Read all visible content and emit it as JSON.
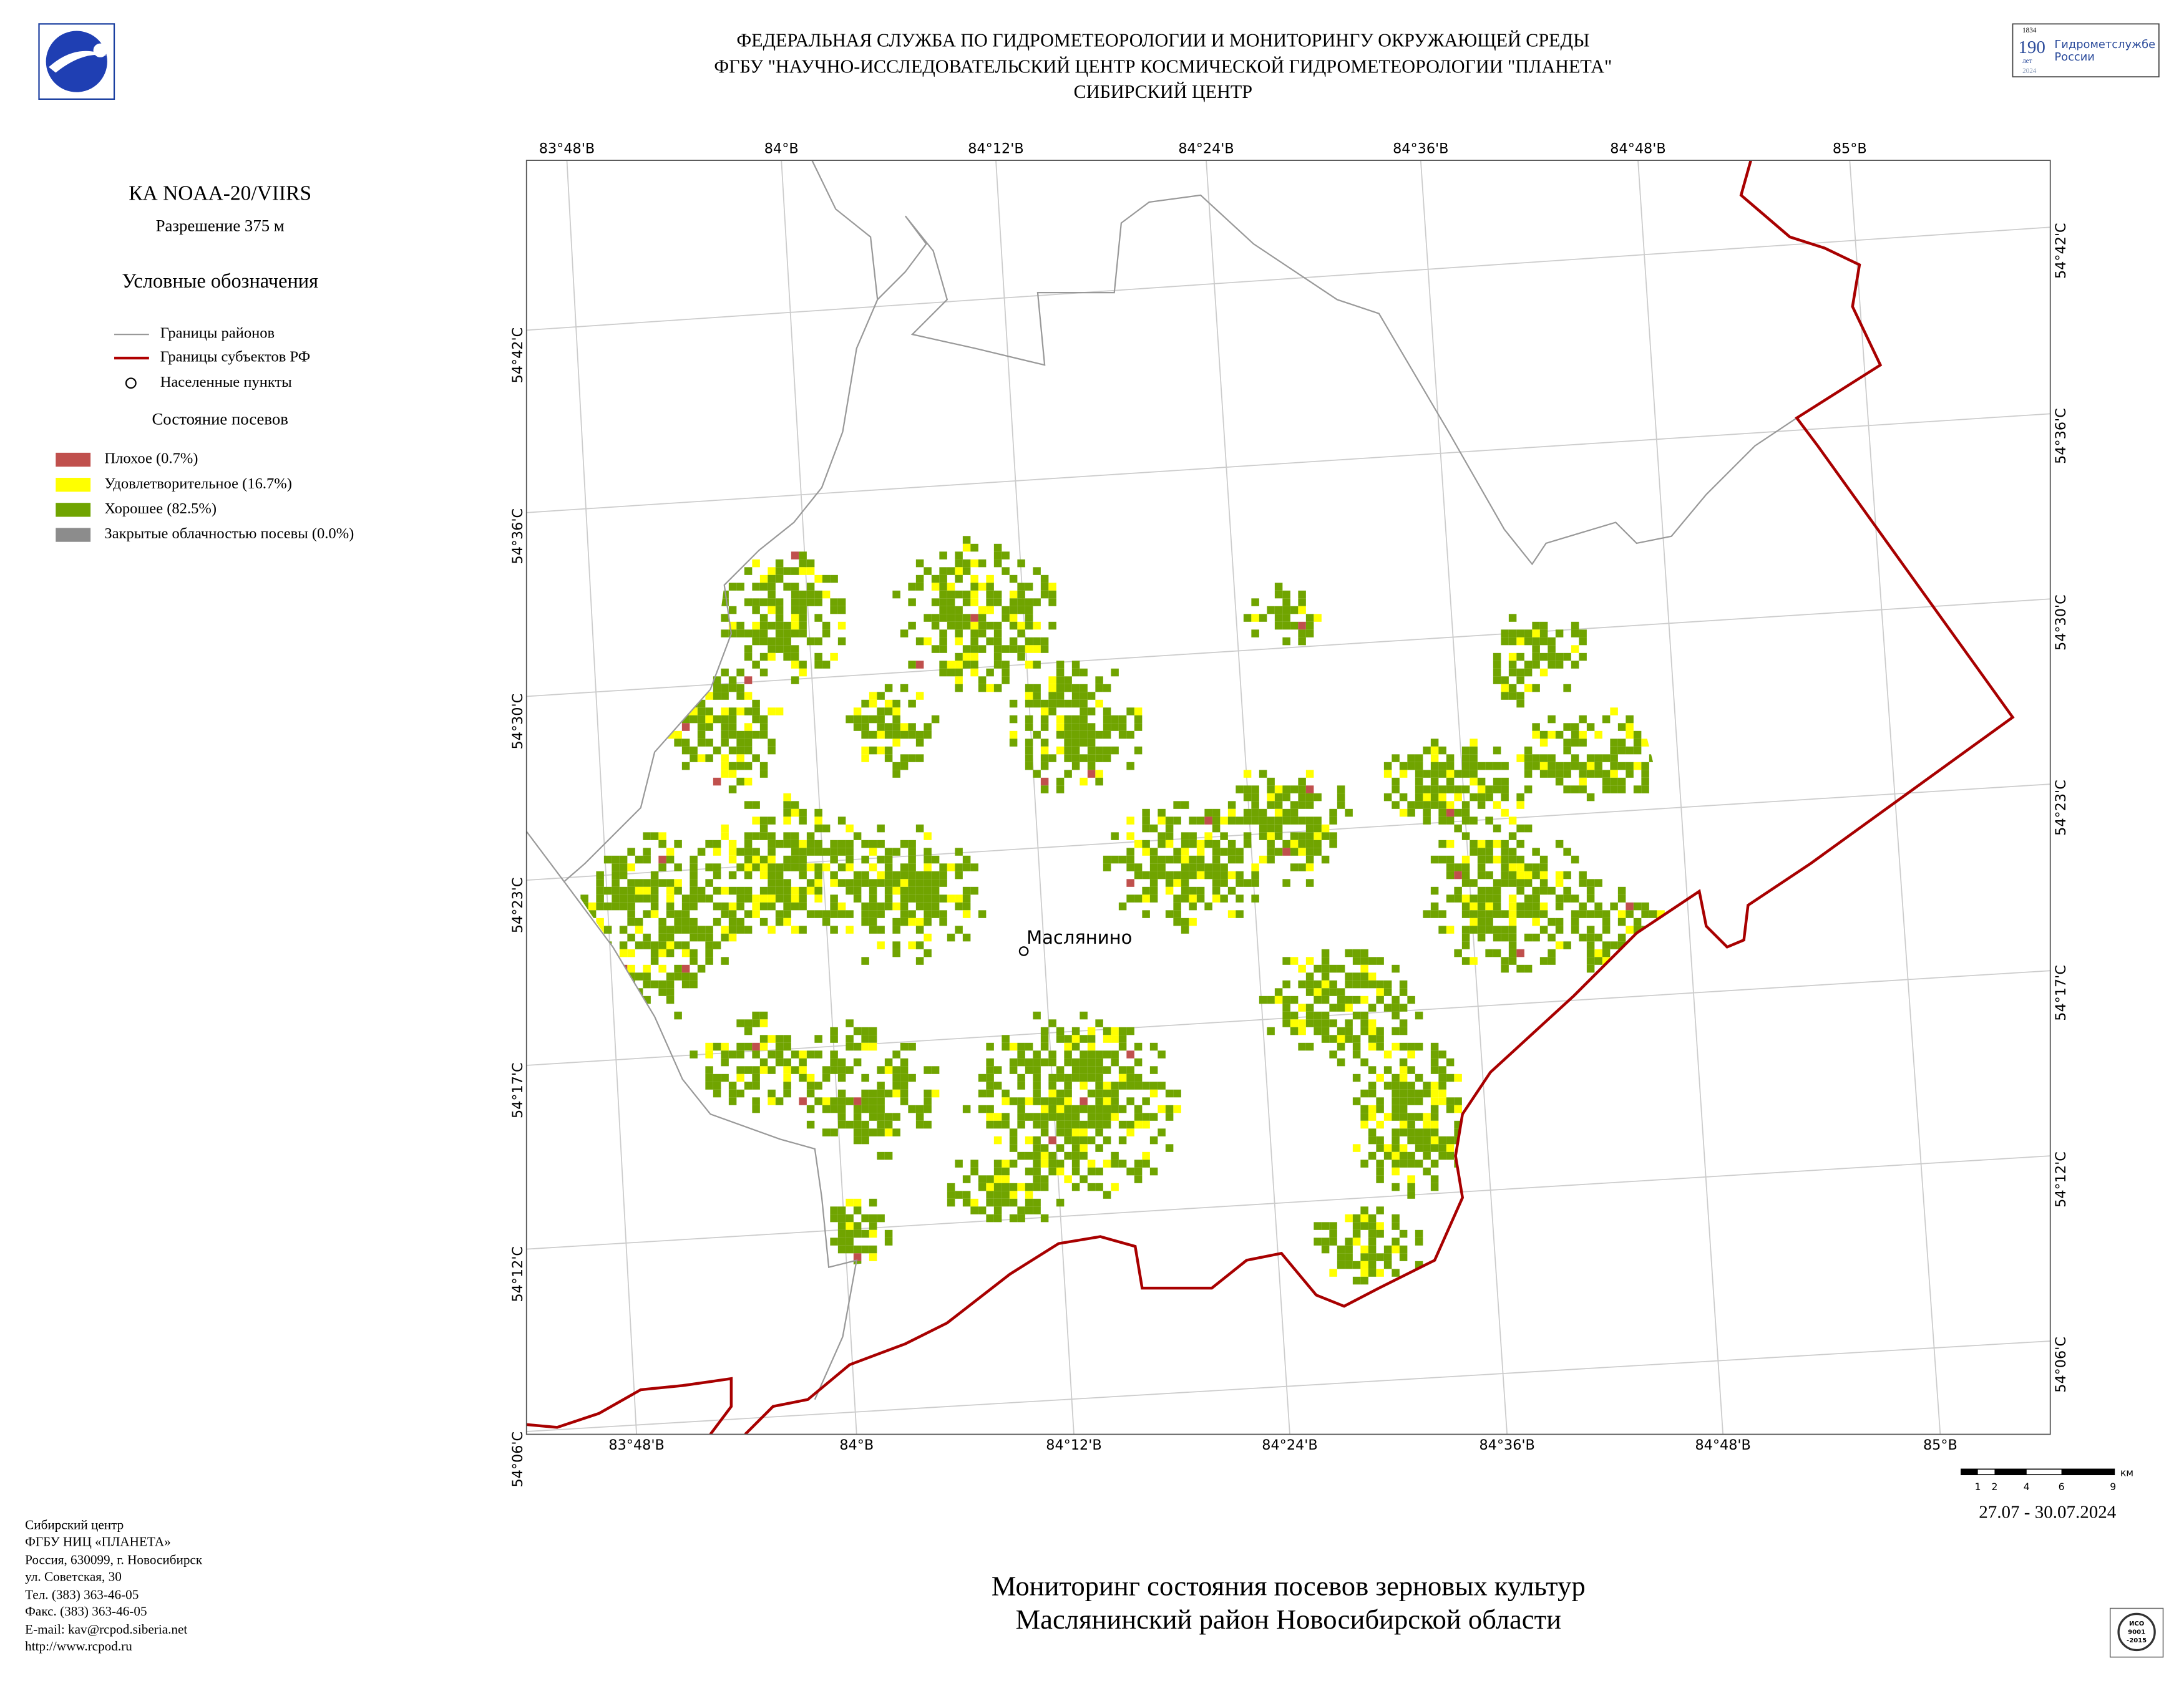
{
  "header": {
    "lines": [
      "ФЕДЕРАЛЬНАЯ СЛУЖБА ПО ГИДРОМЕТЕОРОЛОГИИ И МОНИТОРИНГУ ОКРУЖАЮЩЕЙ СРЕДЫ",
      "ФГБУ \"НАУЧНО-ИССЛЕДОВАТЕЛЬСКИЙ ЦЕНТР КОСМИЧЕСКОЙ ГИДРОМЕТЕОРОЛОГИИ \"ПЛАНЕТА\"",
      "СИБИРСКИЙ ЦЕНТР"
    ],
    "right_logo": {
      "years_top": "1834",
      "number": "190",
      "unit": "лет",
      "years_bottom": "2024",
      "name_1": "Гидрометслужбе",
      "name_2": "России"
    }
  },
  "legend": {
    "satellite": "КА NOAA-20/VIIRS",
    "resolution": "Разрешение 375 м",
    "title": "Условные обозначения",
    "boundaries": [
      "Границы районов",
      "Границы субъектов РФ",
      "Населенные пункты"
    ],
    "crops_title": "Состояние посевов",
    "crops": [
      "Плохое (0.7%)",
      "Удовлетворительное (16.7%)",
      "Хорошее (82.5%)",
      "Закрытые облачностью посевы (0.0%)"
    ]
  },
  "map": {
    "top_labels": [
      "83°48'В",
      "84°В",
      "84°12'В",
      "84°24'В",
      "84°36'В",
      "84°48'В",
      "85°В"
    ],
    "bottom_labels": [
      "83°48'В",
      "84°В",
      "84°12'В",
      "84°24'В",
      "84°36'В",
      "84°48'В",
      "85°В"
    ],
    "left_labels": [
      "54°42'С",
      "54°36'С",
      "54°30'С",
      "54°23'С",
      "54°17'С",
      "54°12'С",
      "54°06'С"
    ],
    "right_labels": [
      "54°42'С",
      "54°36'С",
      "54°30'С",
      "54°23'С",
      "54°17'С",
      "54°12'С",
      "54°06'С"
    ],
    "place": "Маслянино"
  },
  "scale_bar": {
    "labels": [
      "1",
      "2",
      "4",
      "6",
      "9"
    ],
    "unit": "км"
  },
  "date": "27.07 - 30.07.2024",
  "footer": {
    "lines": [
      "Сибирский центр",
      "ФГБУ НИЦ «ПЛАНЕТА»",
      "Россия, 630099, г. Новосибирск",
      "ул. Советская, 30",
      "Тел. (383) 363-46-05",
      "Факс. (383) 363-46-05",
      "E-mail: kav@rcpod.siberia.net",
      "http://www.rcpod.ru"
    ]
  },
  "bottom_title": [
    "Мониторинг состояния посевов зерновых культур",
    "Маслянинский район Новосибирской области"
  ],
  "iso_logo": {
    "line_1": "ИСО",
    "line_2": "9001",
    "line_3": "-2015"
  }
}
